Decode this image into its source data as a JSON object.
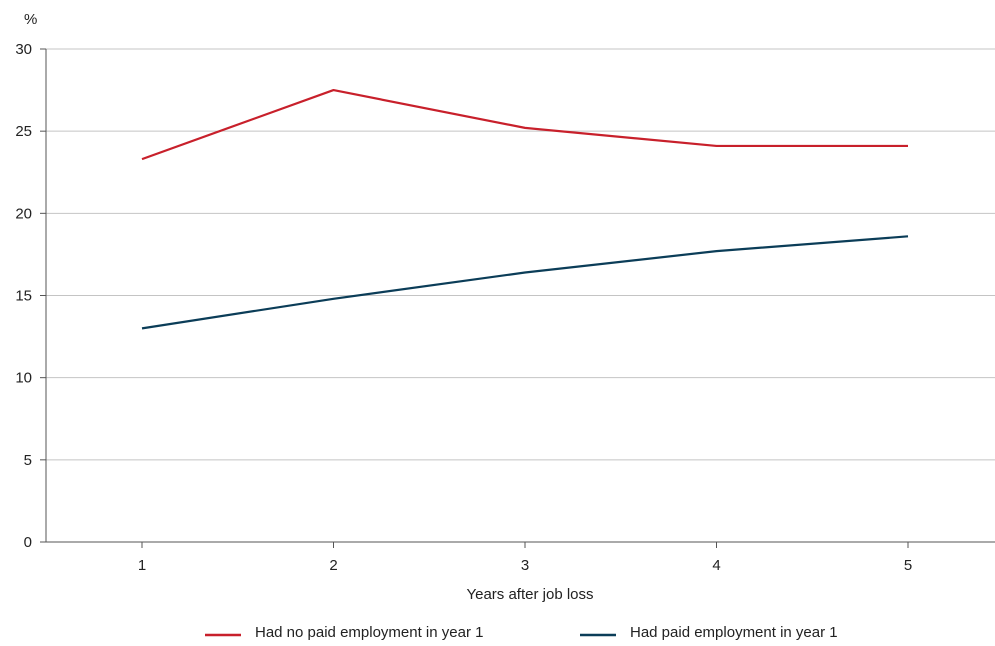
{
  "chart_data": {
    "type": "line",
    "ylabel": "%",
    "xlabel": "Years after job loss",
    "categories": [
      "1",
      "2",
      "3",
      "4",
      "5"
    ],
    "ylim": [
      0,
      30
    ],
    "yticks": [
      "0",
      "5",
      "10",
      "15",
      "20",
      "25",
      "30"
    ],
    "grid": "horizontal",
    "legend_position": "bottom",
    "series": [
      {
        "name": "Had no paid employment in year 1",
        "color": "#c8202b",
        "values": [
          23.3,
          27.5,
          25.2,
          24.1,
          24.1
        ]
      },
      {
        "name": "Had paid employment in year 1",
        "color": "#0b3d58",
        "values": [
          13.0,
          14.8,
          16.4,
          17.7,
          18.6
        ]
      }
    ]
  }
}
